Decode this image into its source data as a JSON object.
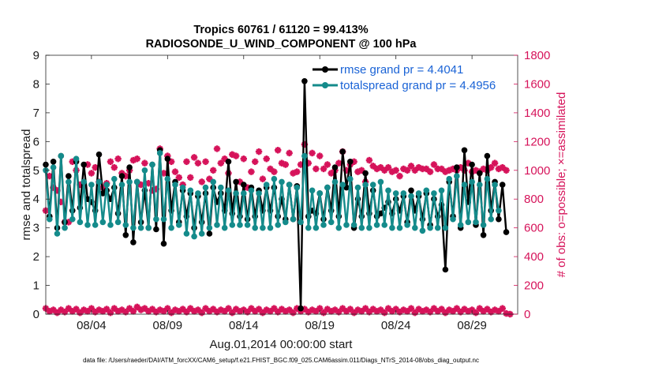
{
  "chart_data": {
    "type": "line",
    "title": "Tropics 60761 / 61120 = 99.413%",
    "subtitle": "RADIOSONDE_U_WIND_COMPONENT @ 100 hPa",
    "xlabel": "Aug.01,2014 00:00:00 start",
    "ylabel_left": "rmse and totalspread",
    "ylabel_right": "# of obs: o=possible; ×=assimilated",
    "x_ticks": [
      "08/04",
      "08/09",
      "08/14",
      "08/19",
      "08/24",
      "08/29"
    ],
    "x_tick_days": [
      4,
      9,
      14,
      19,
      24,
      29
    ],
    "xlim": [
      1.0,
      32.0
    ],
    "ylim_left": [
      0,
      9
    ],
    "yticks_left": [
      "0",
      "1",
      "2",
      "3",
      "4",
      "5",
      "6",
      "7",
      "8",
      "9"
    ],
    "ylim_right": [
      0,
      1800
    ],
    "yticks_right": [
      "0",
      "200",
      "400",
      "600",
      "800",
      "1000",
      "1200",
      "1400",
      "1600",
      "1800"
    ],
    "legend": [
      {
        "label": "rmse grand pr = 4.4041",
        "color": "#000000"
      },
      {
        "label": "totalspread grand pr = 4.4956",
        "color": "#148b8b"
      }
    ],
    "colors": {
      "rmse": "#000000",
      "spread": "#148b8b",
      "obs": "#d6135a",
      "legend_text": "#1a63d6"
    },
    "step_days": 0.25,
    "series": [
      {
        "name": "rmse",
        "start_day": 1.0,
        "values": [
          5.2,
          3.4,
          5.3,
          3.0,
          5.5,
          3.2,
          4.8,
          3.6,
          5.3,
          3.7,
          5.2,
          4.0,
          3.9,
          3.6,
          5.55,
          4.2,
          4.3,
          4.0,
          4.4,
          3.5,
          4.8,
          2.75,
          5.1,
          2.5,
          4.6,
          3.2,
          4.3,
          3.0,
          5.2,
          2.95,
          5.7,
          2.45,
          5.4,
          3.6,
          4.6,
          3.2,
          4.3,
          3.4,
          4.2,
          3.0,
          4.1,
          3.2,
          4.2,
          2.8,
          4.4,
          3.9,
          4.2,
          3.6,
          5.3,
          3.5,
          4.6,
          3.4,
          4.5,
          3.3,
          4.4,
          3.4,
          4.3,
          3.6,
          4.4,
          3.6,
          4.4,
          3.4,
          4.0,
          3.3,
          4.5,
          3.3,
          4.45,
          0.2,
          8.1,
          3.4,
          3.6,
          3.5,
          4.2,
          3.3,
          4.4,
          3.6,
          5.1,
          3.4,
          5.65,
          4.4,
          5.3,
          3.0,
          4.0,
          3.4,
          4.9,
          3.5,
          4.3,
          3.4,
          3.5,
          3.7,
          3.9,
          3.5,
          4.0,
          3.6,
          4.1,
          3.2,
          4.3,
          3.6,
          4.1,
          3.3,
          4.2,
          3.1,
          4.0,
          3.4,
          3.8,
          1.55,
          4.6,
          3.4,
          5.1,
          3.0,
          5.7,
          3.9,
          5.2,
          3.1,
          4.9,
          2.75,
          5.5,
          3.6,
          4.6,
          3.3,
          4.5,
          2.85
        ]
      },
      {
        "name": "totalspread",
        "start_day": 1.0,
        "values": [
          5.0,
          3.3,
          5.1,
          2.8,
          5.5,
          3.0,
          4.6,
          3.3,
          5.4,
          3.2,
          4.6,
          3.1,
          4.5,
          3.1,
          4.6,
          3.2,
          4.5,
          3.1,
          4.7,
          3.2,
          4.5,
          3.1,
          4.6,
          3.0,
          4.6,
          3.0,
          5.0,
          3.0,
          5.2,
          3.3,
          5.6,
          3.3,
          4.7,
          3.0,
          4.5,
          3.1,
          4.4,
          2.8,
          4.3,
          2.7,
          4.2,
          2.8,
          4.4,
          3.0,
          4.6,
          3.1,
          4.4,
          3.0,
          4.3,
          3.1,
          4.2,
          3.1,
          4.2,
          3.1,
          4.3,
          3.0,
          4.2,
          3.0,
          4.5,
          3.0,
          4.7,
          3.1,
          4.6,
          3.2,
          4.5,
          3.3,
          4.4,
          3.2,
          5.5,
          3.0,
          4.3,
          3.0,
          4.2,
          3.1,
          4.4,
          3.2,
          4.6,
          3.0,
          4.5,
          3.1,
          4.7,
          3.1,
          4.4,
          3.0,
          4.5,
          3.0,
          4.5,
          3.1,
          4.6,
          3.1,
          4.3,
          3.0,
          4.2,
          3.0,
          4.2,
          3.1,
          4.1,
          3.0,
          4.2,
          2.9,
          4.3,
          3.0,
          4.2,
          3.0,
          4.3,
          3.0,
          4.7,
          3.3,
          4.8,
          3.1,
          4.5,
          3.2,
          4.6,
          3.2,
          4.5,
          3.1,
          4.7,
          3.3,
          4.5,
          3.6
        ]
      }
    ],
    "obs_possible": {
      "start_day": 1.0,
      "values": [
        720,
        960,
        880,
        860,
        780,
        640,
        640,
        1060,
        1000,
        900,
        890,
        1040,
        980,
        1020,
        920,
        880,
        910,
        1060,
        1020,
        1080,
        980,
        960,
        1000,
        1070,
        1080,
        900,
        1050,
        910,
        860,
        870,
        1150,
        980,
        1100,
        1060,
        990,
        950,
        900,
        1060,
        950,
        1090,
        1050,
        920,
        1060,
        940,
        1000,
        1150,
        1050,
        1080,
        980,
        1110,
        1100,
        920,
        1080,
        880,
        990,
        1060,
        1130,
        940,
        1080,
        1010,
        990,
        1140,
        1050,
        1040,
        1120,
        980,
        990,
        1040,
        1180,
        1050,
        1120,
        1010,
        1100,
        1010,
        1040,
        980,
        1000,
        1050,
        1130,
        1000,
        1040,
        1060,
        990,
        1000,
        920,
        1070,
        1030,
        1010,
        1020,
        1000,
        1020,
        990,
        1000,
        960,
        1010,
        1000,
        1030,
        1000,
        1020,
        1010,
        1010,
        990,
        1040,
        1010,
        1010,
        990,
        1000,
        1010,
        1000,
        1020,
        1000,
        1050,
        990,
        1000,
        990,
        1010,
        1000,
        1020,
        1050,
        1010,
        1020,
        1000
      ]
    },
    "obs_assimilated": {
      "start_day": 1.0,
      "values": [
        40,
        20,
        30,
        10,
        30,
        15,
        40,
        20,
        35,
        10,
        30,
        20,
        40,
        15,
        30,
        20,
        35,
        10,
        40,
        20,
        30,
        15,
        40,
        20,
        50,
        30,
        40,
        20,
        35,
        15,
        30,
        20,
        40,
        10,
        30,
        20,
        35,
        15,
        40,
        20,
        30,
        10,
        40,
        20,
        35,
        15,
        30,
        20,
        40,
        10,
        35,
        20,
        30,
        15,
        40,
        20,
        35,
        10,
        30,
        20,
        40,
        15,
        35,
        20,
        30,
        10,
        40,
        20,
        35,
        15,
        30,
        20,
        40,
        10,
        35,
        20,
        30,
        15,
        40,
        20,
        35,
        10,
        30,
        20,
        40,
        15,
        35,
        20,
        30,
        10,
        40,
        20,
        35,
        15,
        30,
        20,
        40,
        10,
        35,
        20,
        30,
        15,
        40,
        20,
        35,
        10,
        30,
        20,
        40,
        15,
        35,
        20,
        30,
        10,
        40,
        20,
        35,
        15,
        30,
        20,
        40,
        5,
        0
      ]
    }
  },
  "footer": "data file: /Users/raeder/DAI/ATM_forcXX/CAM6_setup/f.e21.FHIST_BGC.f09_025.CAM6assim.011/Diags_NTrS_2014-08/obs_diag_output.nc"
}
